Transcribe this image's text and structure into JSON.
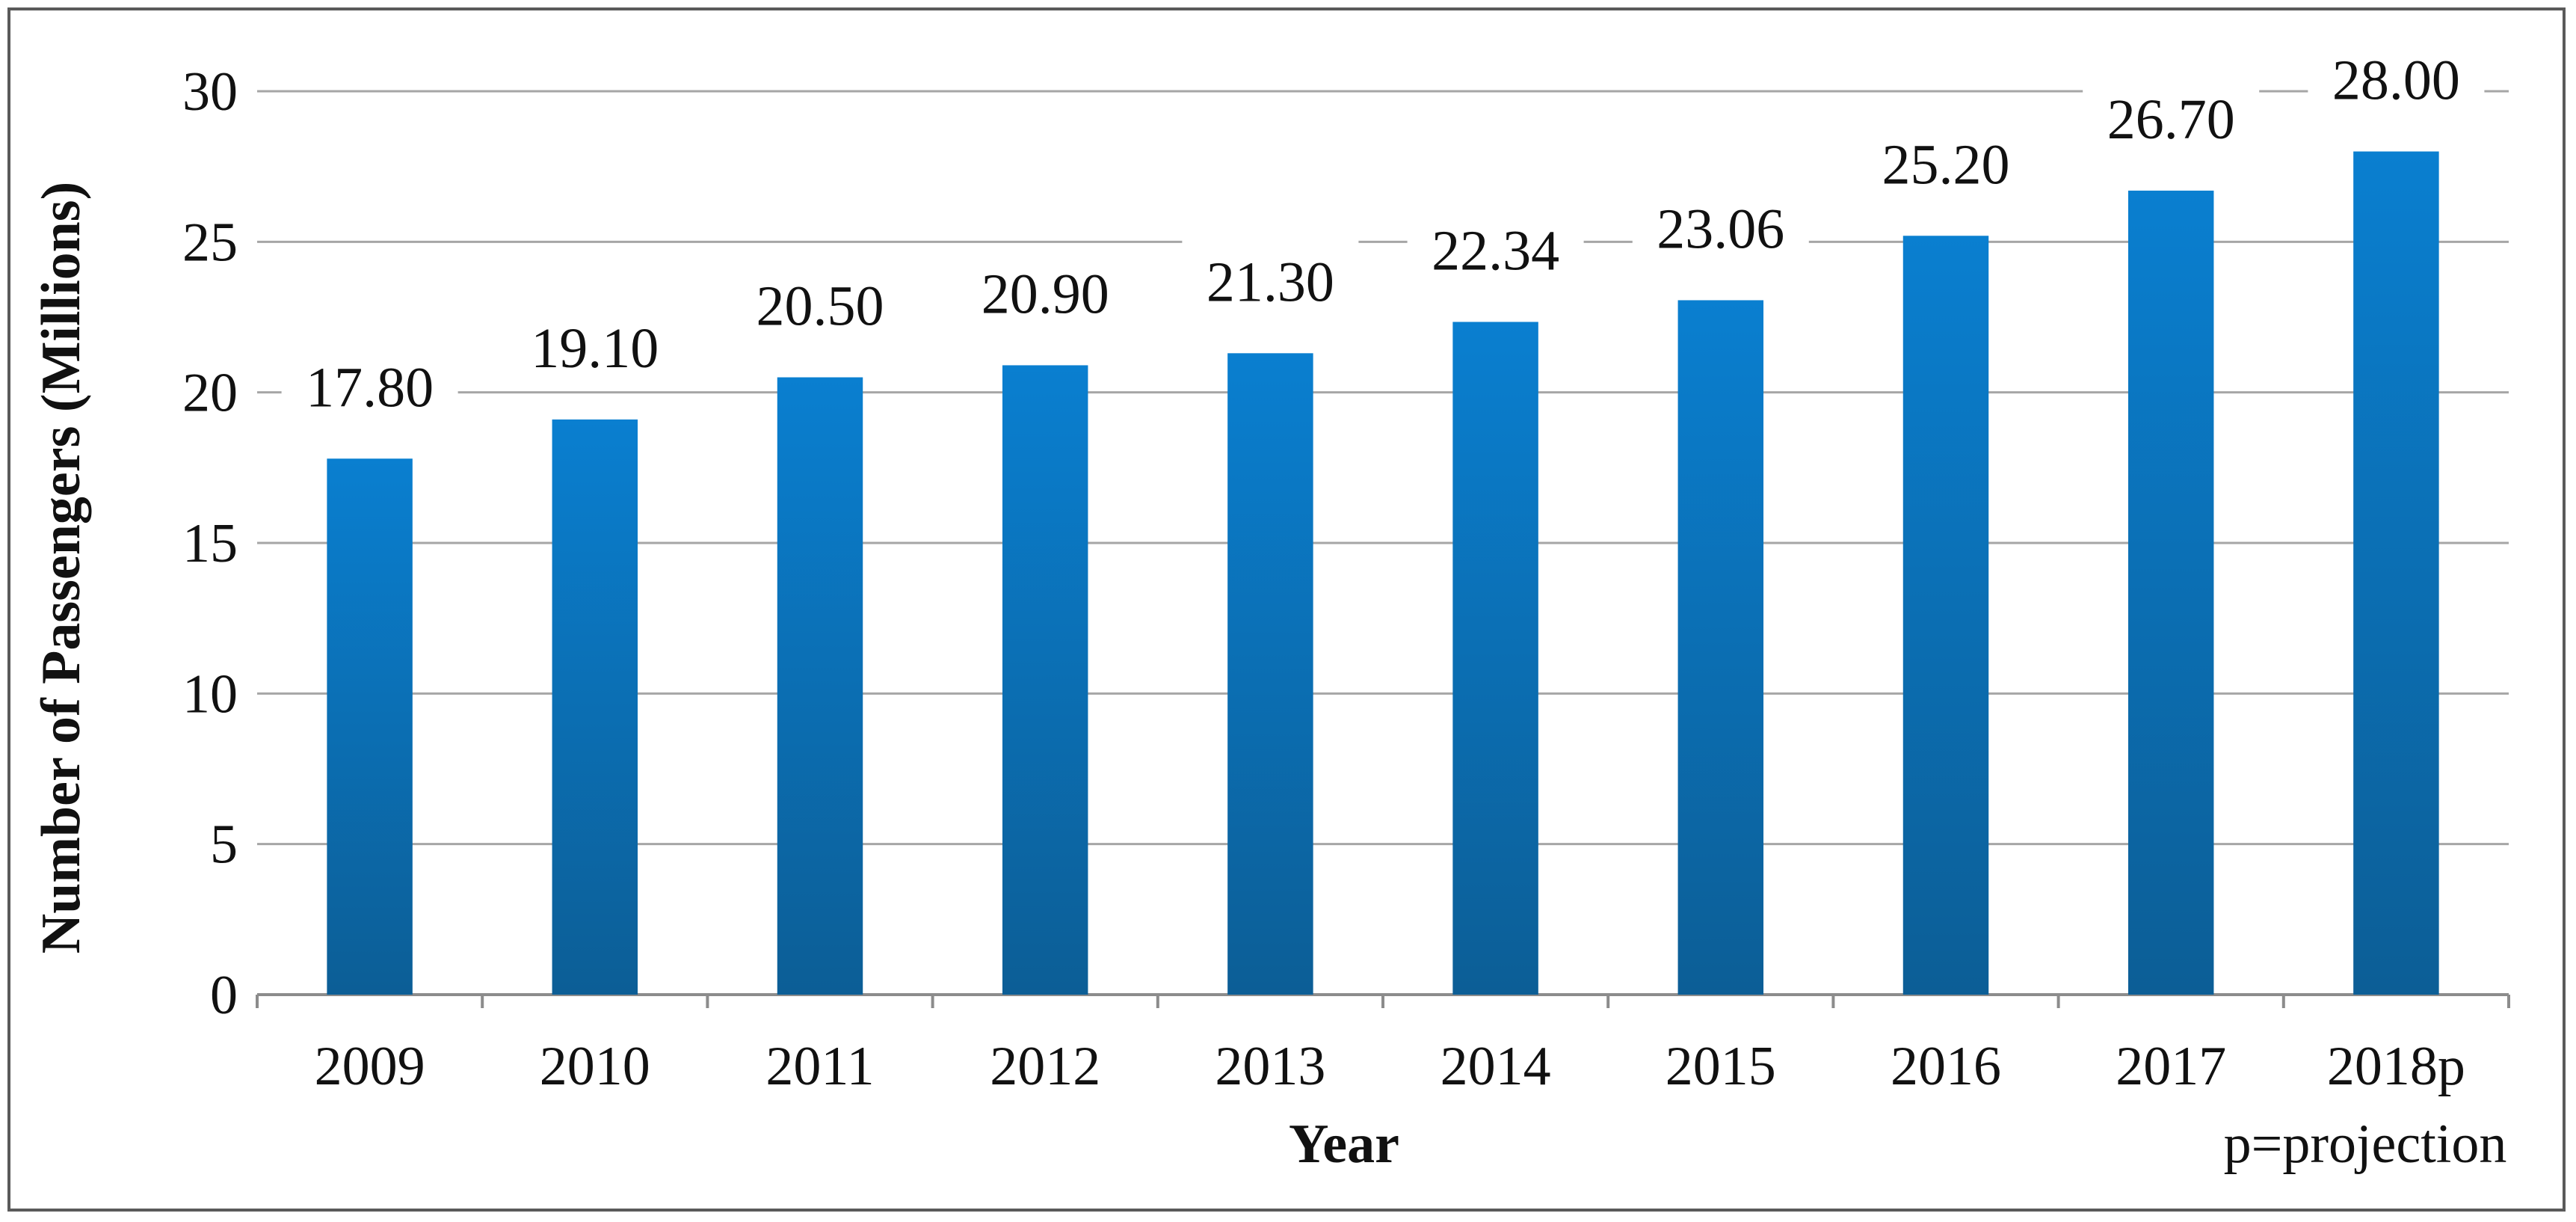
{
  "chart_data": {
    "type": "bar",
    "categories": [
      "2009",
      "2010",
      "2011",
      "2012",
      "2013",
      "2014",
      "2015",
      "2016",
      "2017",
      "2018p"
    ],
    "values": [
      17.8,
      19.1,
      20.5,
      20.9,
      21.3,
      22.34,
      23.06,
      25.2,
      26.7,
      28.0
    ],
    "data_labels": [
      "17.80",
      "19.10",
      "20.50",
      "20.90",
      "21.30",
      "22.34",
      "23.06",
      "25.20",
      "26.70",
      "28.00"
    ],
    "title": "",
    "xlabel": "Year",
    "ylabel": "Number of Passengers (Millions)",
    "ylim": [
      0,
      30
    ],
    "yticks": [
      0,
      5,
      10,
      15,
      20,
      25,
      30
    ],
    "grid": "horizontal",
    "legend": "none",
    "note": "p=projection",
    "colors": {
      "bar_top": "#0A7FD0",
      "bar_bottom": "#0C5E96",
      "gridline": "#A6A6A6",
      "axis": "#8C8C8C",
      "text": "#111111"
    }
  }
}
